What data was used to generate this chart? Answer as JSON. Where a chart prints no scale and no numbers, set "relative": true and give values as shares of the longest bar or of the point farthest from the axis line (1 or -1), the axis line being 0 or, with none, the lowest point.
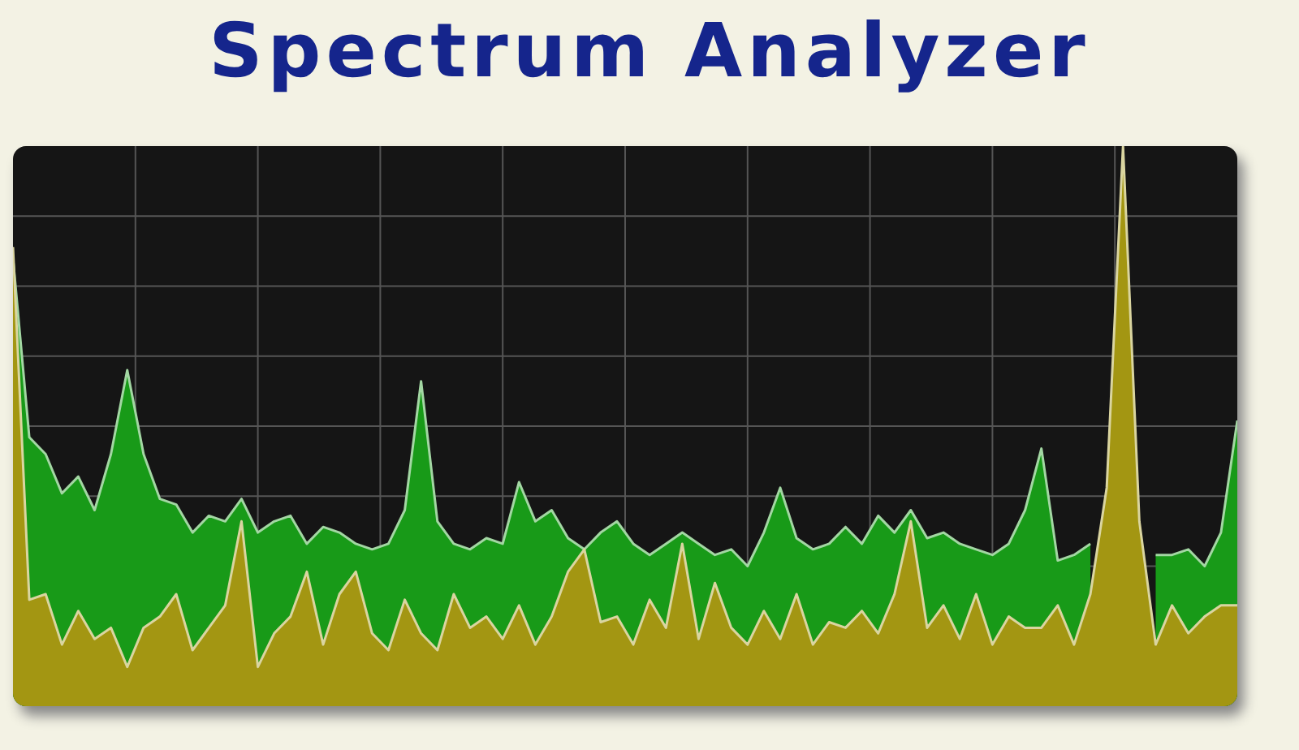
{
  "chart_data": {
    "type": "area",
    "title": "Spectrum Analyzer",
    "relative": true,
    "grid": true,
    "legend": false,
    "categories": [
      null,
      null,
      null,
      null,
      null,
      null,
      null,
      null,
      null,
      null,
      null,
      null,
      null,
      null,
      null,
      null,
      null,
      null,
      null,
      null,
      null,
      null,
      null,
      null,
      null,
      null,
      null,
      null,
      null,
      null,
      null,
      null,
      null,
      null,
      null,
      null,
      null,
      null,
      null,
      null,
      null,
      null,
      null,
      null,
      null,
      null,
      null,
      null,
      null,
      null,
      null,
      null,
      null,
      null,
      null,
      null,
      null,
      null,
      null,
      null,
      null,
      null,
      null,
      null,
      null,
      null,
      null,
      null,
      null,
      null,
      null,
      null,
      null,
      null,
      null,
      null
    ],
    "series": [
      {
        "color": "#189a18",
        "values": [
          0.8,
          0.48,
          0.45,
          0.38,
          0.41,
          0.35,
          0.45,
          0.6,
          0.45,
          0.37,
          0.36,
          0.31,
          0.34,
          0.33,
          0.37,
          0.31,
          0.33,
          0.34,
          0.29,
          0.32,
          0.31,
          0.29,
          0.28,
          0.29,
          0.35,
          0.58,
          0.33,
          0.29,
          0.28,
          0.3,
          0.29,
          0.4,
          0.33,
          0.35,
          0.3,
          0.28,
          0.31,
          0.33,
          0.29,
          0.27,
          0.29,
          0.31,
          0.29,
          0.27,
          0.28,
          0.25,
          0.31,
          0.39,
          0.3,
          0.28,
          0.29,
          0.32,
          0.29,
          0.34,
          0.31,
          0.35,
          0.3,
          0.31,
          0.29,
          0.28,
          0.27,
          0.29,
          0.35,
          0.46,
          0.26,
          0.27,
          0.29,
          null,
          null,
          null,
          0.27,
          0.27,
          0.28,
          0.25,
          0.31,
          0.51
        ]
      },
      {
        "color": "#a39612",
        "values": [
          0.82,
          0.19,
          0.2,
          0.11,
          0.17,
          0.12,
          0.14,
          0.07,
          0.14,
          0.16,
          0.2,
          0.1,
          0.14,
          0.18,
          0.33,
          0.07,
          0.13,
          0.16,
          0.24,
          0.11,
          0.2,
          0.24,
          0.13,
          0.1,
          0.19,
          0.13,
          0.1,
          0.2,
          0.14,
          0.16,
          0.12,
          0.18,
          0.11,
          0.16,
          0.24,
          0.28,
          0.15,
          0.16,
          0.11,
          0.19,
          0.14,
          0.29,
          0.12,
          0.22,
          0.14,
          0.11,
          0.17,
          0.12,
          0.2,
          0.11,
          0.15,
          0.14,
          0.17,
          0.13,
          0.2,
          0.33,
          0.14,
          0.18,
          0.12,
          0.2,
          0.11,
          0.16,
          0.14,
          0.14,
          0.18,
          0.11,
          0.2,
          0.39,
          1,
          0.33,
          0.11,
          0.18,
          0.13,
          0.16,
          0.18,
          0.18
        ]
      }
    ]
  }
}
